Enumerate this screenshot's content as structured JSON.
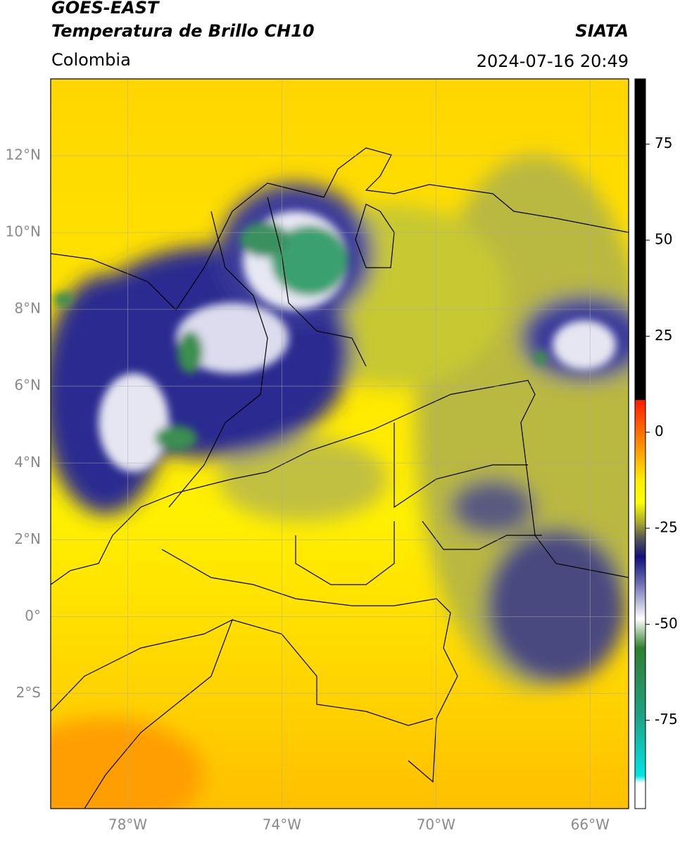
{
  "header": {
    "title": "GOES-EAST",
    "subtitle": "Temperatura de Brillo CH10",
    "region": "Colombia",
    "source": "SIATA",
    "datetime": "2024-07-16 20:49"
  },
  "map": {
    "lonlim": [
      -80,
      -65
    ],
    "latlim": [
      -5,
      14
    ],
    "lon_ticks": [
      {
        "value": -78,
        "label": "78°W"
      },
      {
        "value": -74,
        "label": "74°W"
      },
      {
        "value": -70,
        "label": "70°W"
      },
      {
        "value": -66,
        "label": "66°W"
      }
    ],
    "lat_ticks": [
      {
        "value": 12,
        "label": "12°N"
      },
      {
        "value": 10,
        "label": "10°N"
      },
      {
        "value": 8,
        "label": "8°N"
      },
      {
        "value": 6,
        "label": "6°N"
      },
      {
        "value": 4,
        "label": "4°N"
      },
      {
        "value": 2,
        "label": "2°N"
      },
      {
        "value": 0,
        "label": "0°"
      },
      {
        "value": -2,
        "label": "2°S"
      }
    ]
  },
  "colorbar": {
    "range": [
      -98,
      92
    ],
    "ticks": [
      75,
      50,
      25,
      0,
      -25,
      -50,
      -75
    ]
  }
}
